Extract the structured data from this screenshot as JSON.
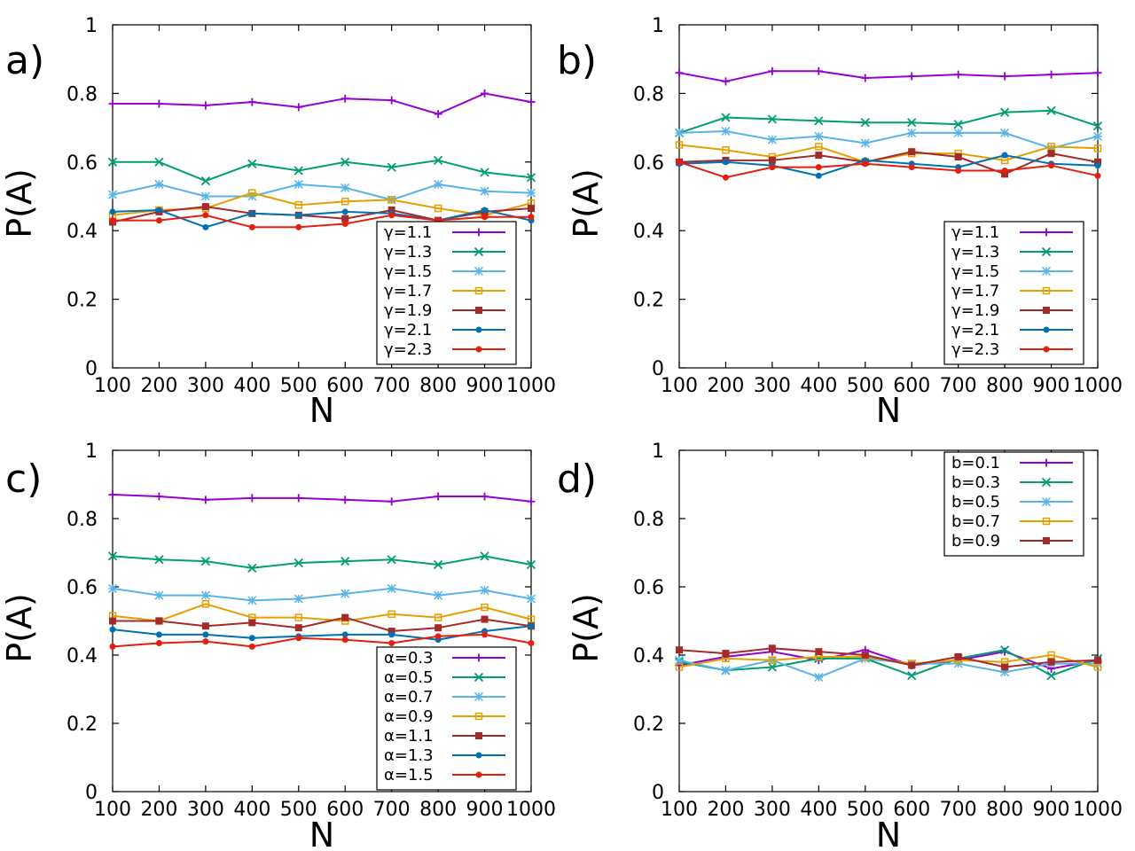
{
  "chart_data": [
    {
      "type": "line",
      "panel_label": "a)",
      "xlabel": "N",
      "ylabel": "P(A)",
      "x": [
        100,
        200,
        300,
        400,
        500,
        600,
        700,
        800,
        900,
        1000
      ],
      "xtick_labels": [
        "100",
        "200",
        "300",
        "400",
        "500",
        "600",
        "700",
        "800",
        "900",
        "1000"
      ],
      "ylim": [
        0,
        1
      ],
      "ytick_labels": [
        "0",
        "0.2",
        "0.4",
        "0.6",
        "0.8",
        "1"
      ],
      "legend_position": "bottom-right",
      "series": [
        {
          "name": "γ=1.1",
          "color": "#9400d3",
          "marker": "plus",
          "values": [
            0.77,
            0.77,
            0.765,
            0.775,
            0.76,
            0.785,
            0.78,
            0.74,
            0.8,
            0.775
          ]
        },
        {
          "name": "γ=1.3",
          "color": "#009e73",
          "marker": "x",
          "values": [
            0.6,
            0.6,
            0.545,
            0.595,
            0.575,
            0.6,
            0.585,
            0.605,
            0.57,
            0.555
          ]
        },
        {
          "name": "γ=1.5",
          "color": "#56b4e9",
          "marker": "star",
          "values": [
            0.505,
            0.535,
            0.5,
            0.5,
            0.535,
            0.525,
            0.49,
            0.535,
            0.515,
            0.51
          ]
        },
        {
          "name": "γ=1.7",
          "color": "#e69f00",
          "marker": "open-square",
          "values": [
            0.445,
            0.46,
            0.465,
            0.51,
            0.475,
            0.485,
            0.49,
            0.465,
            0.445,
            0.48
          ]
        },
        {
          "name": "γ=1.9",
          "color": "#a52a2a",
          "marker": "filled-square",
          "values": [
            0.425,
            0.455,
            0.47,
            0.45,
            0.445,
            0.435,
            0.46,
            0.43,
            0.455,
            0.465
          ]
        },
        {
          "name": "γ=2.1",
          "color": "#0072b2",
          "marker": "filled-circle",
          "values": [
            0.455,
            0.46,
            0.41,
            0.45,
            0.445,
            0.455,
            0.45,
            0.43,
            0.46,
            0.43
          ]
        },
        {
          "name": "γ=2.3",
          "color": "#e51e10",
          "marker": "filled-circle",
          "values": [
            0.43,
            0.43,
            0.445,
            0.41,
            0.41,
            0.42,
            0.445,
            0.43,
            0.44,
            0.44
          ]
        }
      ]
    },
    {
      "type": "line",
      "panel_label": "b)",
      "xlabel": "N",
      "ylabel": "P(A)",
      "x": [
        100,
        200,
        300,
        400,
        500,
        600,
        700,
        800,
        900,
        1000
      ],
      "xtick_labels": [
        "100",
        "200",
        "300",
        "400",
        "500",
        "600",
        "700",
        "800",
        "900",
        "1000"
      ],
      "ylim": [
        0,
        1
      ],
      "ytick_labels": [
        "0",
        "0.2",
        "0.4",
        "0.6",
        "0.8",
        "1"
      ],
      "legend_position": "bottom-right",
      "series": [
        {
          "name": "γ=1.1",
          "color": "#9400d3",
          "marker": "plus",
          "values": [
            0.86,
            0.835,
            0.865,
            0.865,
            0.845,
            0.85,
            0.855,
            0.85,
            0.855,
            0.86
          ]
        },
        {
          "name": "γ=1.3",
          "color": "#009e73",
          "marker": "x",
          "values": [
            0.685,
            0.73,
            0.725,
            0.72,
            0.715,
            0.715,
            0.71,
            0.745,
            0.75,
            0.705
          ]
        },
        {
          "name": "γ=1.5",
          "color": "#56b4e9",
          "marker": "star",
          "values": [
            0.685,
            0.69,
            0.665,
            0.675,
            0.655,
            0.685,
            0.685,
            0.685,
            0.64,
            0.675
          ]
        },
        {
          "name": "γ=1.7",
          "color": "#e69f00",
          "marker": "open-square",
          "values": [
            0.65,
            0.635,
            0.615,
            0.645,
            0.6,
            0.625,
            0.625,
            0.605,
            0.645,
            0.64
          ]
        },
        {
          "name": "γ=1.9",
          "color": "#a52a2a",
          "marker": "filled-square",
          "values": [
            0.6,
            0.605,
            0.605,
            0.62,
            0.6,
            0.63,
            0.615,
            0.565,
            0.625,
            0.6
          ]
        },
        {
          "name": "γ=2.1",
          "color": "#0072b2",
          "marker": "filled-circle",
          "values": [
            0.595,
            0.6,
            0.59,
            0.56,
            0.605,
            0.595,
            0.585,
            0.62,
            0.595,
            0.59
          ]
        },
        {
          "name": "γ=2.3",
          "color": "#e51e10",
          "marker": "filled-circle",
          "values": [
            0.6,
            0.555,
            0.585,
            0.585,
            0.595,
            0.585,
            0.575,
            0.575,
            0.59,
            0.56
          ]
        }
      ]
    },
    {
      "type": "line",
      "panel_label": "c)",
      "xlabel": "N",
      "ylabel": "P(A)",
      "x": [
        100,
        200,
        300,
        400,
        500,
        600,
        700,
        800,
        900,
        1000
      ],
      "xtick_labels": [
        "100",
        "200",
        "300",
        "400",
        "500",
        "600",
        "700",
        "800",
        "900",
        "1000"
      ],
      "ylim": [
        0,
        1
      ],
      "ytick_labels": [
        "0",
        "0.2",
        "0.4",
        "0.6",
        "0.8",
        "1"
      ],
      "legend_position": "bottom-right",
      "series": [
        {
          "name": "α=0.3",
          "color": "#9400d3",
          "marker": "plus",
          "values": [
            0.87,
            0.865,
            0.855,
            0.86,
            0.86,
            0.855,
            0.85,
            0.865,
            0.865,
            0.85
          ]
        },
        {
          "name": "α=0.5",
          "color": "#009e73",
          "marker": "x",
          "values": [
            0.69,
            0.68,
            0.675,
            0.655,
            0.67,
            0.675,
            0.68,
            0.665,
            0.69,
            0.665
          ]
        },
        {
          "name": "α=0.7",
          "color": "#56b4e9",
          "marker": "star",
          "values": [
            0.595,
            0.575,
            0.575,
            0.56,
            0.565,
            0.58,
            0.595,
            0.575,
            0.59,
            0.565
          ]
        },
        {
          "name": "α=0.9",
          "color": "#e69f00",
          "marker": "open-square",
          "values": [
            0.515,
            0.5,
            0.55,
            0.51,
            0.51,
            0.5,
            0.52,
            0.51,
            0.54,
            0.505
          ]
        },
        {
          "name": "α=1.1",
          "color": "#a52a2a",
          "marker": "filled-square",
          "values": [
            0.5,
            0.5,
            0.485,
            0.495,
            0.48,
            0.51,
            0.47,
            0.48,
            0.505,
            0.485
          ]
        },
        {
          "name": "α=1.3",
          "color": "#0072b2",
          "marker": "filled-circle",
          "values": [
            0.475,
            0.46,
            0.46,
            0.45,
            0.455,
            0.46,
            0.46,
            0.445,
            0.47,
            0.485
          ]
        },
        {
          "name": "α=1.5",
          "color": "#e51e10",
          "marker": "filled-circle",
          "values": [
            0.425,
            0.435,
            0.44,
            0.425,
            0.45,
            0.445,
            0.435,
            0.455,
            0.46,
            0.435
          ]
        }
      ]
    },
    {
      "type": "line",
      "panel_label": "d)",
      "xlabel": "N",
      "ylabel": "P(A)",
      "x": [
        100,
        200,
        300,
        400,
        500,
        600,
        700,
        800,
        900,
        1000
      ],
      "xtick_labels": [
        "100",
        "200",
        "300",
        "400",
        "500",
        "600",
        "700",
        "800",
        "900",
        "1000"
      ],
      "ylim": [
        0,
        1
      ],
      "ytick_labels": [
        "0",
        "0.2",
        "0.4",
        "0.6",
        "0.8",
        "1"
      ],
      "legend_position": "top-right",
      "series": [
        {
          "name": "b=0.1",
          "color": "#9400d3",
          "marker": "plus",
          "values": [
            0.37,
            0.395,
            0.41,
            0.385,
            0.415,
            0.37,
            0.385,
            0.41,
            0.36,
            0.385
          ]
        },
        {
          "name": "b=0.3",
          "color": "#009e73",
          "marker": "x",
          "values": [
            0.38,
            0.355,
            0.365,
            0.39,
            0.39,
            0.34,
            0.39,
            0.415,
            0.34,
            0.39
          ]
        },
        {
          "name": "b=0.5",
          "color": "#56b4e9",
          "marker": "star",
          "values": [
            0.385,
            0.355,
            0.385,
            0.335,
            0.39,
            0.375,
            0.375,
            0.35,
            0.375,
            0.375
          ]
        },
        {
          "name": "b=0.7",
          "color": "#e69f00",
          "marker": "open-square",
          "values": [
            0.365,
            0.39,
            0.385,
            0.395,
            0.395,
            0.375,
            0.385,
            0.38,
            0.4,
            0.365
          ]
        },
        {
          "name": "b=0.9",
          "color": "#a52a2a",
          "marker": "filled-square",
          "values": [
            0.415,
            0.405,
            0.42,
            0.41,
            0.4,
            0.37,
            0.395,
            0.365,
            0.38,
            0.385
          ]
        }
      ]
    }
  ]
}
